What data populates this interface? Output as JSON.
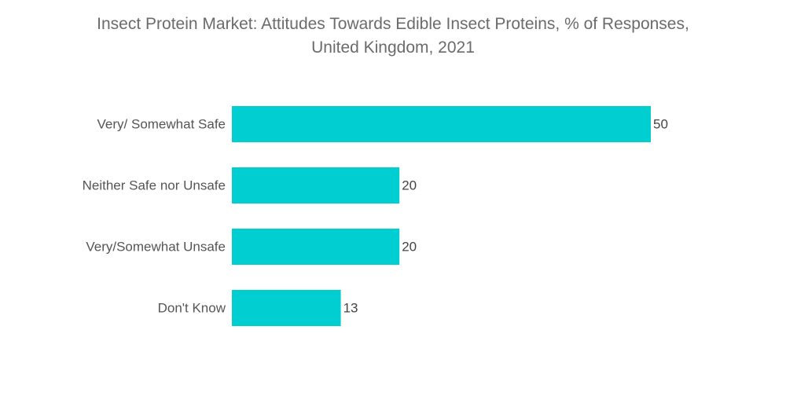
{
  "chart_data": {
    "type": "bar",
    "orientation": "horizontal",
    "title": "Insect Protein Market: Attitudes Towards Edible Insect Proteins, % of Responses,",
    "subtitle": "United Kingdom, 2021",
    "categories": [
      "Very/ Somewhat Safe",
      "Neither Safe nor Unsafe",
      "Very/Somewhat Unsafe",
      "Don't Know"
    ],
    "values": [
      50,
      20,
      20,
      13
    ],
    "xlabel": "",
    "ylabel": "",
    "xlim": [
      0,
      50
    ],
    "grid": false,
    "legend": "none",
    "bar_color": "#00ced1"
  }
}
